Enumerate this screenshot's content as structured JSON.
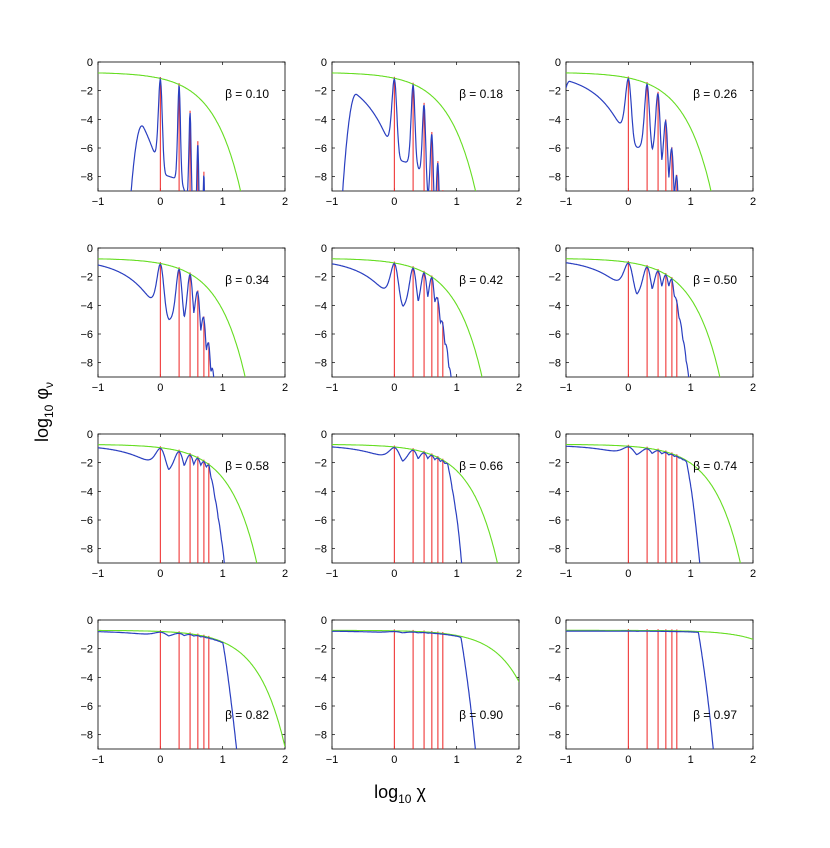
{
  "chart_data": {
    "type": "line",
    "layout": "4x3 grid of subplots",
    "xlabel": "log",
    "xlabel_sub": "10",
    "xlabel_var": " χ",
    "ylabel": "log",
    "ylabel_sub": "10",
    "ylabel_var": " φ",
    "ylabel_var_sub": "ν",
    "xlim": [
      -1,
      2
    ],
    "ylim": [
      -9,
      0
    ],
    "xticks": [
      -1,
      0,
      1,
      2
    ],
    "yticks": [
      0,
      -2,
      -4,
      -6,
      -8
    ],
    "xtick_labels": [
      "−1",
      "0",
      "1",
      "2"
    ],
    "ytick_labels": [
      "0",
      "−2",
      "−4",
      "−6",
      "−8"
    ],
    "series_colors": {
      "envelope": "#66dd22",
      "spectrum": "#2a3fc0",
      "harmonics": "#ee2222"
    },
    "harmonic_positions_log10_chi": [
      0.0,
      0.301,
      0.477,
      0.602,
      0.699,
      0.778
    ],
    "panels": [
      {
        "beta": 0.1,
        "label": "β = 0.10"
      },
      {
        "beta": 0.18,
        "label": "β = 0.18"
      },
      {
        "beta": 0.26,
        "label": "β = 0.26"
      },
      {
        "beta": 0.34,
        "label": "β = 0.34"
      },
      {
        "beta": 0.42,
        "label": "β = 0.42"
      },
      {
        "beta": 0.5,
        "label": "β = 0.50"
      },
      {
        "beta": 0.58,
        "label": "β = 0.58"
      },
      {
        "beta": 0.66,
        "label": "β = 0.66"
      },
      {
        "beta": 0.74,
        "label": "β = 0.74"
      },
      {
        "beta": 0.82,
        "label": "β = 0.82"
      },
      {
        "beta": 0.9,
        "label": "β = 0.90"
      },
      {
        "beta": 0.97,
        "label": "β = 0.97"
      }
    ]
  }
}
